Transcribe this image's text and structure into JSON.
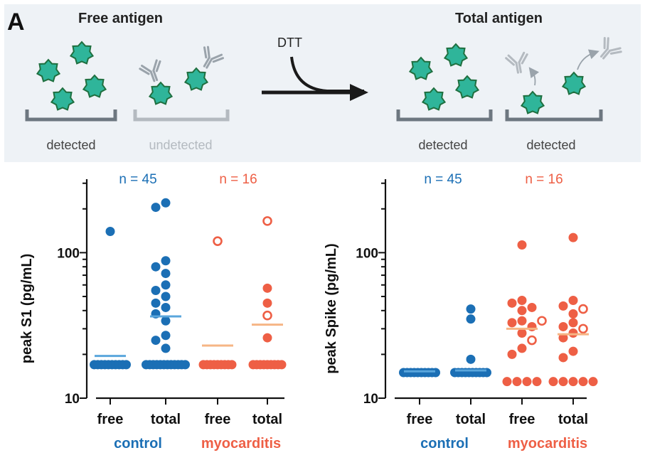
{
  "panel_label": "A",
  "schematic": {
    "free_title": "Free antigen",
    "total_title": "Total antigen",
    "arrow_label": "DTT",
    "wells": [
      "detected",
      "undetected",
      "detected",
      "detected"
    ],
    "colors": {
      "antigen_fill": "#2fb59a",
      "antigen_stroke": "#1f6f3f",
      "antibody": "#9aa3ab",
      "well": "#6d7780",
      "faded": "#b4bac0"
    }
  },
  "chart_data": [
    {
      "type": "scatter",
      "ylabel": "peak S1 (pg/mL)",
      "yscale": "log",
      "ylim": [
        10,
        320
      ],
      "yticks": [
        10,
        100
      ],
      "categories": [
        "free",
        "total",
        "free",
        "total"
      ],
      "groups": [
        {
          "name": "control",
          "n_label": "n = 45",
          "color": "#1b6fb5",
          "mean_color": "#5aa6dc"
        },
        {
          "name": "myocarditis",
          "n_label": "n = 16",
          "color": "#ee5f45",
          "mean_color": "#f6b585"
        }
      ],
      "series": [
        {
          "category": "free",
          "group": "control",
          "mean": 19.5,
          "points": [
            {
              "y": 140
            }
          ],
          "hollow": [],
          "floor": {
            "y": 17,
            "n": 10
          }
        },
        {
          "category": "total",
          "group": "control",
          "mean": 36.5,
          "points": [
            {
              "y": 220
            },
            {
              "y": 205
            },
            {
              "y": 88
            },
            {
              "y": 80
            },
            {
              "y": 72
            },
            {
              "y": 60
            },
            {
              "y": 55
            },
            {
              "y": 50
            },
            {
              "y": 45
            },
            {
              "y": 42
            },
            {
              "y": 38
            },
            {
              "y": 34
            },
            {
              "y": 27
            },
            {
              "y": 25
            },
            {
              "y": 22
            }
          ],
          "hollow": [],
          "floor": {
            "y": 17,
            "n": 12
          }
        },
        {
          "category": "free",
          "group": "myocarditis",
          "mean": 23,
          "points": [],
          "hollow": [
            {
              "y": 120
            }
          ],
          "floor": {
            "y": 17,
            "n": 9
          }
        },
        {
          "category": "total",
          "group": "myocarditis",
          "mean": 32,
          "points": [
            {
              "y": 57
            },
            {
              "y": 45
            },
            {
              "y": 26
            }
          ],
          "hollow": [
            {
              "y": 165
            },
            {
              "y": 37
            }
          ],
          "floor": {
            "y": 17,
            "n": 9
          }
        }
      ]
    },
    {
      "type": "scatter",
      "ylabel": "peak Spike (pg/mL)",
      "yscale": "log",
      "ylim": [
        10,
        320
      ],
      "yticks": [
        10,
        100
      ],
      "categories": [
        "free",
        "total",
        "free",
        "total"
      ],
      "groups": [
        {
          "name": "control",
          "n_label": "n = 45",
          "color": "#1b6fb5",
          "mean_color": "#5aa6dc"
        },
        {
          "name": "myocarditis",
          "n_label": "n = 16",
          "color": "#ee5f45",
          "mean_color": "#f6b585"
        }
      ],
      "series": [
        {
          "category": "free",
          "group": "control",
          "mean": 15.3,
          "points": [],
          "hollow": [],
          "floor": {
            "y": 15,
            "n": 10
          }
        },
        {
          "category": "total",
          "group": "control",
          "mean": 15.5,
          "points": [
            {
              "y": 41
            },
            {
              "y": 35
            },
            {
              "y": 18.5
            }
          ],
          "hollow": [],
          "floor": {
            "y": 15,
            "n": 10
          }
        },
        {
          "category": "free",
          "group": "myocarditis",
          "mean": 30,
          "points": [
            {
              "y": 113
            },
            {
              "y": 47
            },
            {
              "y": 45
            },
            {
              "y": 42
            },
            {
              "y": 40
            },
            {
              "y": 34
            },
            {
              "y": 33
            },
            {
              "y": 31
            },
            {
              "y": 28
            },
            {
              "y": 22
            },
            {
              "y": 20
            }
          ],
          "hollow": [
            {
              "y": 34
            },
            {
              "y": 25
            }
          ],
          "floor": {
            "y": 13,
            "n": 4
          }
        },
        {
          "category": "total",
          "group": "myocarditis",
          "mean": 27.5,
          "points": [
            {
              "y": 127
            },
            {
              "y": 47
            },
            {
              "y": 43
            },
            {
              "y": 38
            },
            {
              "y": 33
            },
            {
              "y": 31
            },
            {
              "y": 28
            },
            {
              "y": 26
            },
            {
              "y": 21
            },
            {
              "y": 19
            }
          ],
          "hollow": [
            {
              "y": 41
            },
            {
              "y": 30
            }
          ],
          "floor": {
            "y": 13,
            "n": 5
          }
        }
      ]
    }
  ]
}
